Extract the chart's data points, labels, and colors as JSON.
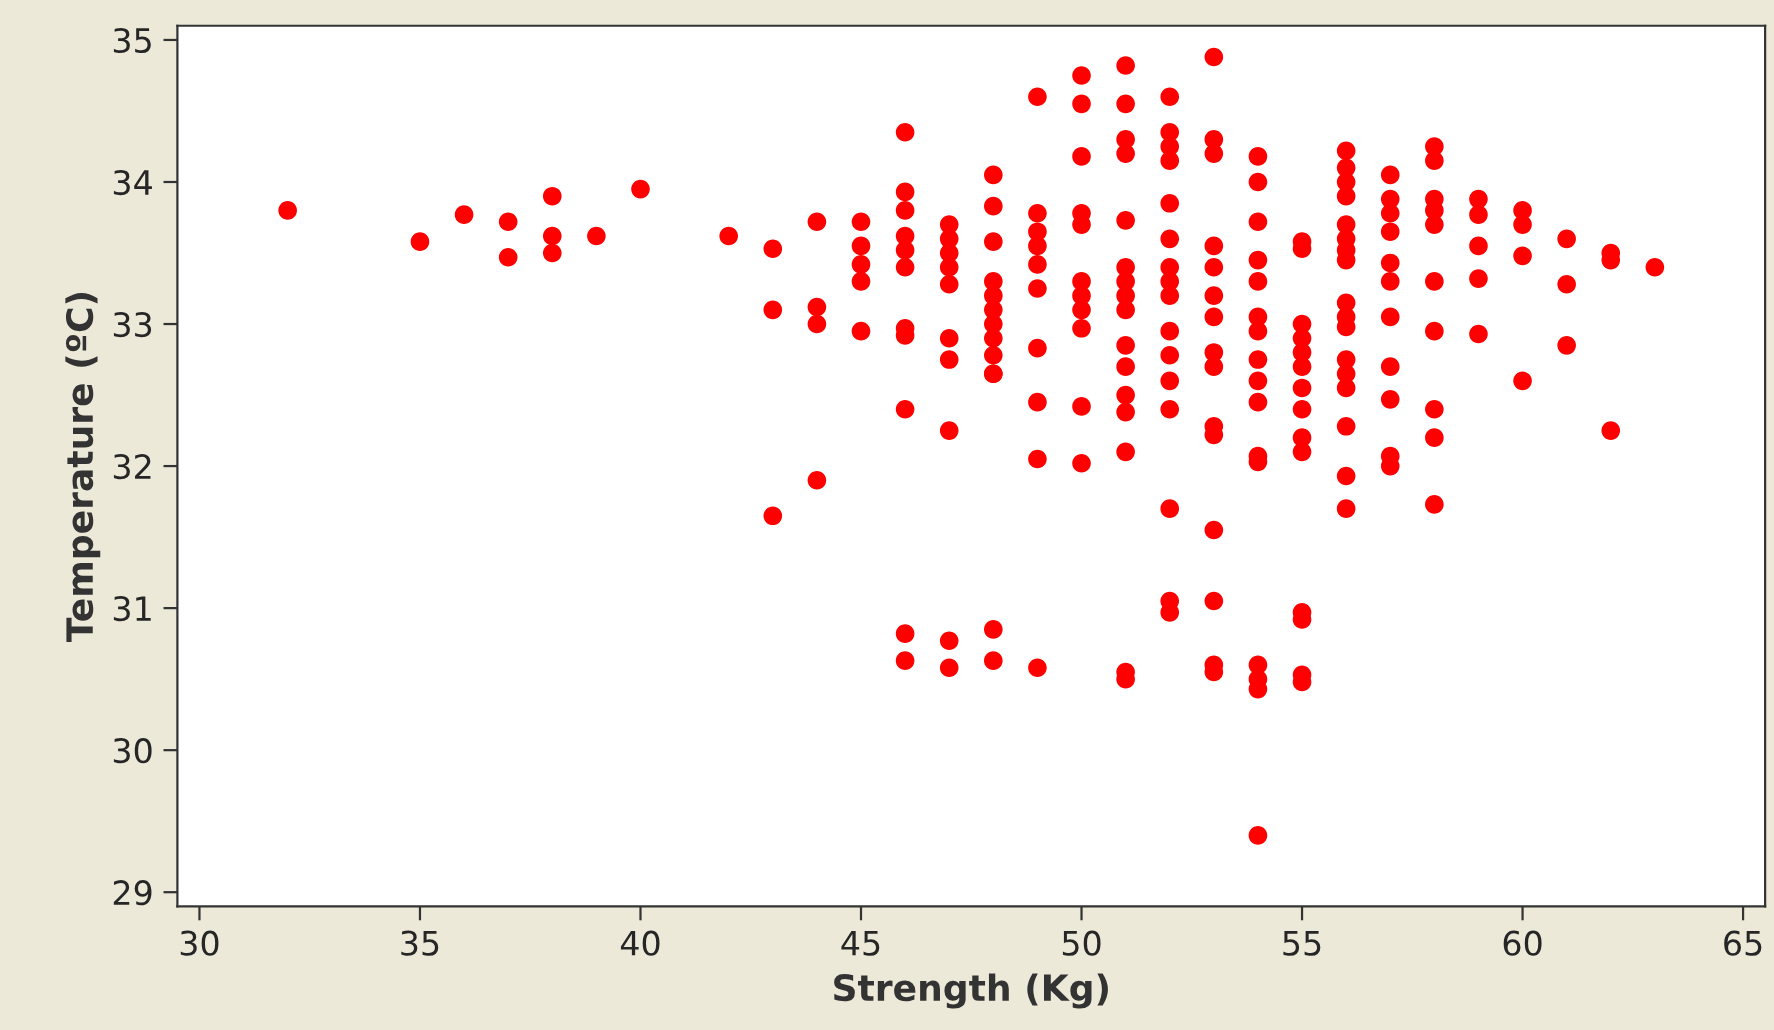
{
  "chart_data": {
    "type": "scatter",
    "xlabel": "Strength (Kg)",
    "ylabel": "Temperature (ºC)",
    "xlim": [
      29.5,
      65.5
    ],
    "xticks": [
      30,
      35,
      40,
      45,
      50,
      55,
      60,
      65
    ],
    "ylim": [
      28.9,
      35.1
    ],
    "yticks": [
      29,
      30,
      31,
      32,
      33,
      34,
      35
    ],
    "grid": false,
    "marker": "circle",
    "series": [
      {
        "color": "#ff0000",
        "x": [
          32,
          35,
          36,
          37,
          37,
          38,
          38,
          38,
          39,
          40,
          42,
          43,
          43,
          43,
          44,
          44,
          44,
          44,
          45,
          45,
          45,
          45,
          45,
          46,
          46,
          46,
          46,
          46,
          46,
          46,
          46,
          46,
          46,
          46,
          47,
          47,
          47,
          47,
          47,
          47,
          47,
          47,
          47,
          47,
          48,
          48,
          48,
          48,
          48,
          48,
          48,
          48,
          48,
          48,
          48,
          48,
          48,
          49,
          49,
          49,
          49,
          49,
          49,
          49,
          49,
          49,
          49,
          50,
          50,
          50,
          50,
          50,
          50,
          50,
          50,
          50,
          50,
          50,
          51,
          51,
          51,
          51,
          51,
          51,
          51,
          51,
          51,
          51,
          51,
          51,
          51,
          51,
          51,
          51,
          52,
          52,
          52,
          52,
          52,
          52,
          52,
          52,
          52,
          52,
          52,
          52,
          52,
          52,
          52,
          52,
          53,
          53,
          53,
          53,
          53,
          53,
          53,
          53,
          53,
          53,
          53,
          53,
          53,
          53,
          53,
          54,
          54,
          54,
          54,
          54,
          54,
          54,
          54,
          54,
          54,
          54,
          54,
          54,
          54,
          54,
          54,
          55,
          55,
          55,
          55,
          55,
          55,
          55,
          55,
          55,
          55,
          55,
          55,
          55,
          55,
          56,
          56,
          56,
          56,
          56,
          56,
          56,
          56,
          56,
          56,
          56,
          56,
          56,
          56,
          56,
          56,
          56,
          57,
          57,
          57,
          57,
          57,
          57,
          57,
          57,
          57,
          57,
          57,
          58,
          58,
          58,
          58,
          58,
          58,
          58,
          58,
          58,
          58,
          59,
          59,
          59,
          59,
          59,
          60,
          60,
          60,
          60,
          61,
          61,
          61,
          62,
          62,
          62,
          63
        ],
        "values": [
          33.8,
          33.58,
          33.77,
          33.72,
          33.47,
          33.9,
          33.62,
          33.5,
          33.62,
          33.95,
          33.62,
          33.53,
          33.1,
          31.65,
          33.72,
          33.12,
          33.0,
          31.9,
          33.72,
          33.55,
          33.42,
          33.3,
          32.95,
          34.35,
          33.93,
          33.8,
          33.62,
          33.52,
          33.4,
          32.97,
          32.92,
          32.4,
          30.82,
          30.63,
          33.7,
          33.6,
          33.5,
          33.4,
          33.28,
          32.9,
          32.75,
          32.25,
          30.77,
          30.58,
          34.05,
          33.83,
          33.58,
          33.3,
          33.2,
          33.1,
          33.0,
          32.9,
          32.78,
          32.65,
          32.65,
          30.85,
          30.63,
          34.6,
          33.78,
          33.65,
          33.55,
          33.42,
          33.25,
          32.83,
          32.45,
          32.05,
          30.58,
          34.75,
          34.55,
          34.18,
          33.78,
          33.7,
          33.3,
          33.2,
          33.1,
          32.97,
          32.42,
          32.02,
          34.82,
          34.55,
          34.3,
          34.2,
          33.73,
          33.4,
          33.3,
          33.2,
          33.1,
          32.85,
          32.7,
          32.5,
          32.38,
          32.1,
          30.55,
          30.5,
          34.6,
          34.35,
          34.25,
          34.15,
          33.85,
          33.6,
          33.4,
          33.3,
          33.2,
          32.95,
          32.78,
          32.6,
          32.4,
          31.7,
          31.05,
          30.97,
          34.88,
          34.3,
          34.2,
          33.55,
          33.4,
          33.2,
          33.05,
          32.8,
          32.7,
          32.28,
          32.22,
          31.55,
          31.05,
          30.6,
          30.55,
          34.18,
          34.0,
          33.72,
          33.45,
          33.3,
          33.05,
          32.95,
          32.75,
          32.6,
          32.45,
          32.07,
          32.03,
          30.6,
          30.5,
          30.43,
          29.4,
          33.58,
          33.53,
          33.0,
          32.9,
          32.8,
          32.7,
          32.55,
          32.4,
          32.2,
          32.1,
          30.97,
          30.92,
          30.53,
          30.48,
          34.22,
          34.1,
          34.0,
          33.9,
          33.7,
          33.6,
          33.52,
          33.45,
          33.15,
          33.05,
          32.98,
          32.75,
          32.65,
          32.55,
          32.28,
          31.93,
          31.7,
          34.05,
          33.88,
          33.78,
          33.65,
          33.43,
          33.3,
          33.05,
          32.7,
          32.47,
          32.07,
          32.0,
          34.25,
          34.15,
          33.88,
          33.8,
          33.7,
          33.3,
          32.95,
          32.4,
          32.2,
          31.73,
          33.88,
          33.77,
          33.55,
          33.32,
          32.93,
          33.8,
          33.7,
          33.48,
          32.6,
          33.6,
          33.28,
          32.85,
          33.5,
          33.45,
          32.25,
          33.4
        ]
      }
    ]
  }
}
